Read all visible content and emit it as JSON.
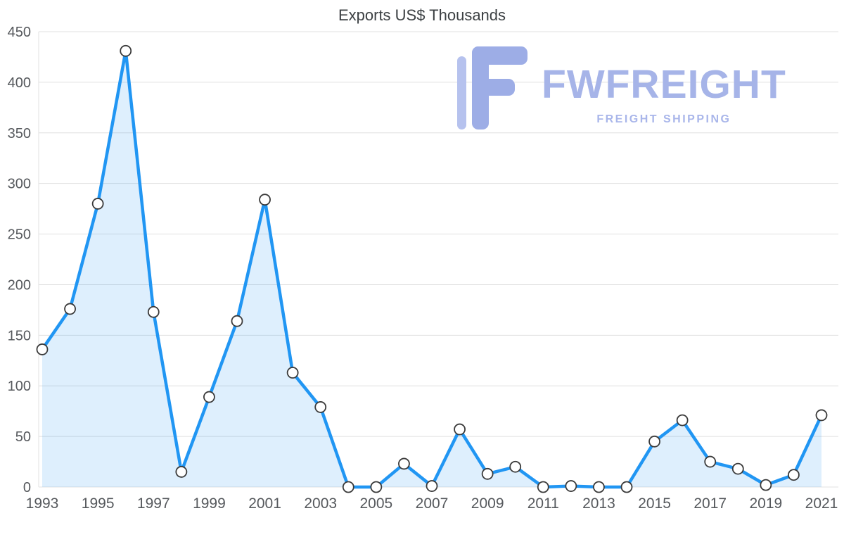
{
  "title": "Exports US$ Thousands",
  "logo": {
    "name": "FWFREIGHT",
    "tagline": "FREIGHT SHIPPING",
    "color": "#a6b4e8"
  },
  "chart_data": {
    "type": "area",
    "title": "Exports US$ Thousands",
    "x": [
      1993,
      1994,
      1995,
      1996,
      1997,
      1998,
      1999,
      2000,
      2001,
      2002,
      2003,
      2004,
      2005,
      2006,
      2007,
      2008,
      2009,
      2010,
      2011,
      2012,
      2013,
      2014,
      2015,
      2016,
      2017,
      2018,
      2019,
      2020,
      2021
    ],
    "values": [
      136,
      176,
      280,
      431,
      173,
      15,
      89,
      164,
      284,
      113,
      79,
      0,
      0,
      23,
      1,
      57,
      13,
      20,
      0,
      1,
      0,
      0,
      45,
      66,
      25,
      18,
      2,
      12,
      71
    ],
    "xlabel": "",
    "ylabel": "",
    "ylim": [
      0,
      450
    ],
    "ytick_step": 50,
    "xtick_step": 2,
    "grid": true,
    "legend": "none",
    "line_color": "#2196f3",
    "fill_opacity": 0.15,
    "marker_fill": "#ffffff",
    "marker_stroke": "#3a3a3a",
    "grid_color": "#e0e0e0",
    "tick_color": "#55585c",
    "title_color": "#3c4043"
  }
}
